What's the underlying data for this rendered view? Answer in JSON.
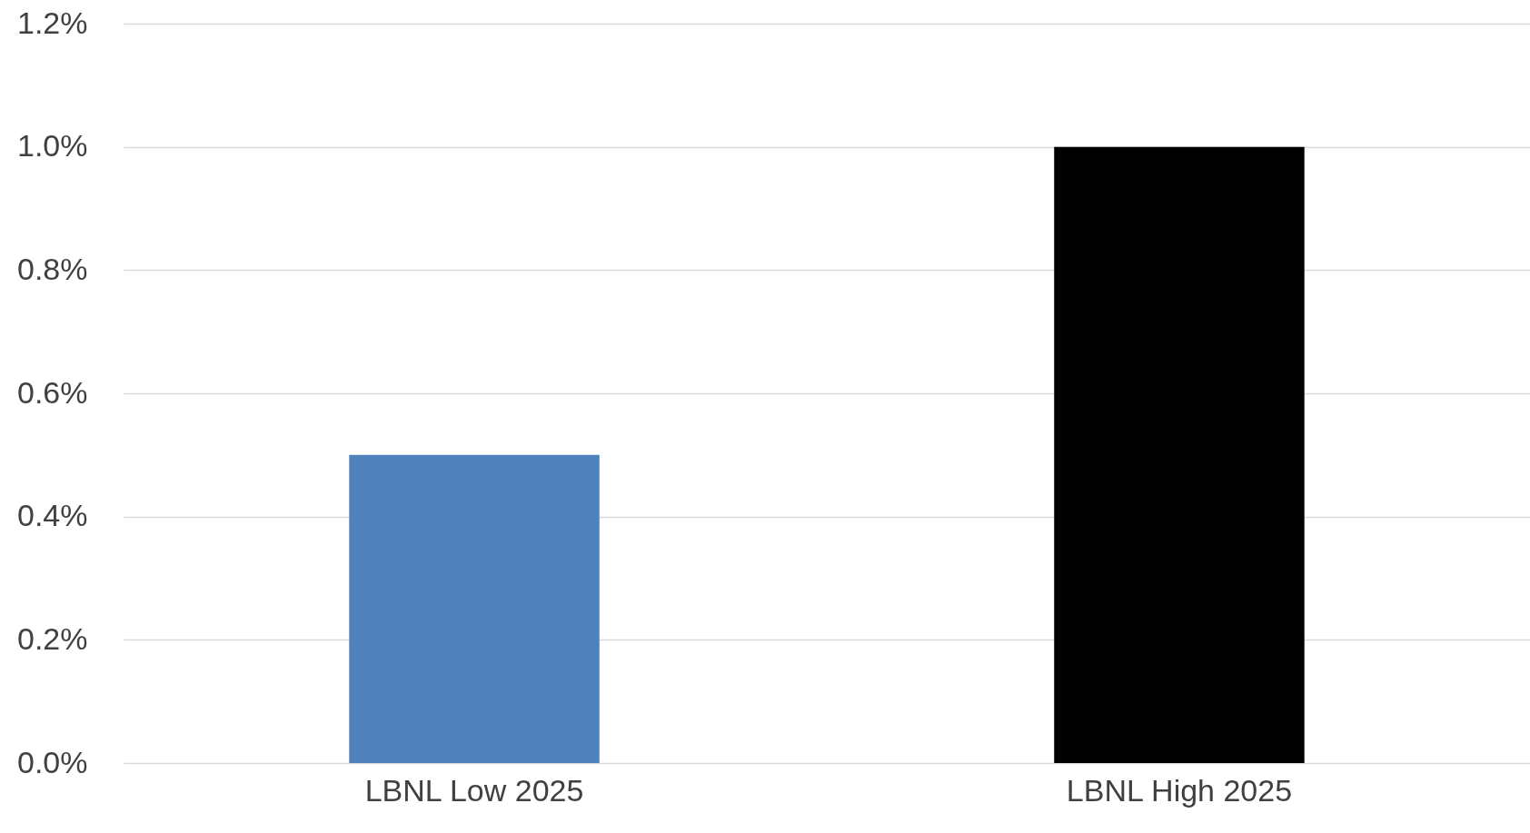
{
  "chart_data": {
    "type": "bar",
    "categories": [
      "LBNL Low 2025",
      "LBNL High 2025"
    ],
    "values": [
      0.5,
      1.0
    ],
    "colors": [
      "#4f81bd",
      "#000000"
    ],
    "ylim": [
      0,
      1.2
    ],
    "yticks": [
      {
        "value": 0,
        "label": "0.0%"
      },
      {
        "value": 0.2,
        "label": "0.2%"
      },
      {
        "value": 0.4,
        "label": "0.4%"
      },
      {
        "value": 0.6,
        "label": "0.6%"
      },
      {
        "value": 0.8,
        "label": "0.8%"
      },
      {
        "value": 1.0,
        "label": "1.0%"
      },
      {
        "value": 1.2,
        "label": "1.2%"
      }
    ],
    "grid": "y"
  }
}
